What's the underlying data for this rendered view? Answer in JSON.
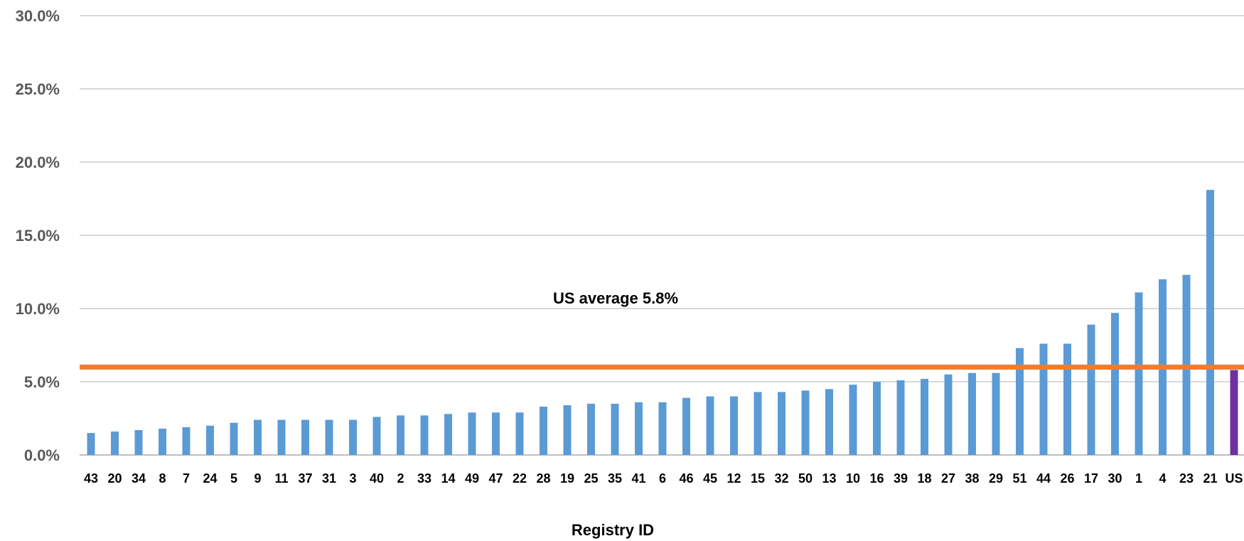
{
  "chart_data": {
    "type": "bar",
    "xlabel": "Registry ID",
    "ylabel": "",
    "ylim": [
      0,
      30
    ],
    "yticks": [
      "0.0%",
      "5.0%",
      "10.0%",
      "15.0%",
      "20.0%",
      "25.0%",
      "30.0%"
    ],
    "grid": true,
    "categories": [
      "43",
      "20",
      "34",
      "8",
      "7",
      "24",
      "5",
      "9",
      "11",
      "37",
      "31",
      "3",
      "40",
      "2",
      "33",
      "14",
      "49",
      "47",
      "22",
      "28",
      "19",
      "25",
      "35",
      "41",
      "6",
      "46",
      "45",
      "12",
      "15",
      "32",
      "50",
      "13",
      "10",
      "16",
      "39",
      "18",
      "27",
      "38",
      "29",
      "51",
      "44",
      "26",
      "17",
      "30",
      "1",
      "4",
      "23",
      "21",
      "US"
    ],
    "values": [
      1.5,
      1.6,
      1.7,
      1.8,
      1.9,
      2.0,
      2.2,
      2.4,
      2.4,
      2.4,
      2.4,
      2.4,
      2.6,
      2.7,
      2.7,
      2.8,
      2.9,
      2.9,
      2.9,
      3.3,
      3.4,
      3.5,
      3.5,
      3.6,
      3.6,
      3.9,
      4.0,
      4.0,
      4.3,
      4.3,
      4.4,
      4.5,
      4.8,
      5.0,
      5.1,
      5.2,
      5.5,
      5.6,
      5.6,
      7.3,
      7.6,
      7.6,
      8.9,
      9.7,
      11.1,
      12.0,
      12.3,
      18.1,
      5.8
    ],
    "bar_color": "#5b9bd5",
    "highlight_category": "US",
    "highlight_color": "#7030a0",
    "reference_line": {
      "value": 6.0,
      "color": "#ed7d31"
    },
    "annotation": "US average 5.8%"
  }
}
